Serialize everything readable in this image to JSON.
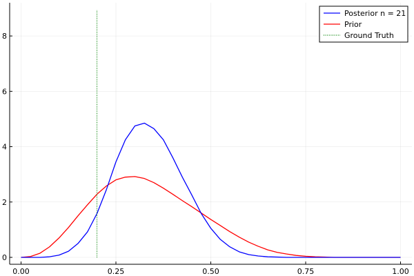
{
  "chart_data": {
    "type": "line",
    "title": "",
    "xlabel": "",
    "ylabel": "",
    "xlim": [
      -0.03,
      1.03
    ],
    "ylim": [
      -0.25,
      9.2
    ],
    "grid": true,
    "legend_position": "top-right",
    "x_ticks": [
      0.0,
      0.25,
      0.5,
      0.75,
      1.0
    ],
    "x_tick_labels": [
      "0.00",
      "0.25",
      "0.50",
      "0.75",
      "1.00"
    ],
    "y_ticks": [
      0,
      2,
      4,
      6,
      8
    ],
    "y_tick_labels": [
      "0",
      "2",
      "4",
      "6",
      "8"
    ],
    "x": [
      0.0,
      0.025,
      0.05,
      0.075,
      0.1,
      0.125,
      0.15,
      0.175,
      0.2,
      0.225,
      0.25,
      0.275,
      0.3,
      0.325,
      0.35,
      0.375,
      0.4,
      0.425,
      0.45,
      0.475,
      0.5,
      0.525,
      0.55,
      0.575,
      0.6,
      0.625,
      0.65,
      0.675,
      0.7,
      0.725,
      0.75,
      0.775,
      0.8,
      0.825,
      0.85,
      0.875,
      0.9,
      0.925,
      0.95,
      0.975,
      1.0
    ],
    "series": [
      {
        "name": "Posterior n = 21",
        "color": "#0000ff",
        "style": "solid",
        "values": [
          0.0,
          0.0,
          0.0,
          0.02,
          0.08,
          0.22,
          0.5,
          0.92,
          1.58,
          2.45,
          3.45,
          4.25,
          4.75,
          4.85,
          4.65,
          4.25,
          3.6,
          2.9,
          2.25,
          1.58,
          1.05,
          0.65,
          0.38,
          0.2,
          0.1,
          0.05,
          0.02,
          0.01,
          0.0,
          0.0,
          0.0,
          0.0,
          0.0,
          0.0,
          0.0,
          0.0,
          0.0,
          0.0,
          0.0,
          0.0,
          0.0
        ]
      },
      {
        "name": "Prior",
        "color": "#ff0000",
        "style": "solid",
        "values": [
          0.0,
          0.03,
          0.15,
          0.38,
          0.7,
          1.08,
          1.5,
          1.9,
          2.28,
          2.58,
          2.8,
          2.9,
          2.92,
          2.85,
          2.7,
          2.5,
          2.28,
          2.05,
          1.83,
          1.6,
          1.37,
          1.15,
          0.93,
          0.73,
          0.55,
          0.4,
          0.27,
          0.18,
          0.12,
          0.07,
          0.04,
          0.02,
          0.01,
          0.0,
          0.0,
          0.0,
          0.0,
          0.0,
          0.0,
          0.0,
          0.0
        ]
      },
      {
        "name": "Ground Truth",
        "color": "#008000",
        "style": "dotted",
        "x": [
          0.2,
          0.2
        ],
        "values": [
          0.0,
          8.95
        ]
      }
    ]
  }
}
